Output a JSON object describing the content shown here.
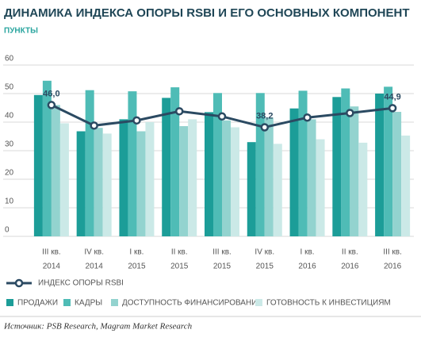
{
  "chart_data": {
    "type": "bar_line",
    "title": "ДИНАМИКА ИНДЕКСА ОПОРЫ RSBI И ЕГО ОСНОВНЫХ КОМПОНЕНТ",
    "subtitle": "ПУНКТЫ",
    "categories": [
      [
        "III кв.",
        "2014"
      ],
      [
        "IV кв.",
        "2014"
      ],
      [
        "I кв.",
        "2015"
      ],
      [
        "II кв.",
        "2015"
      ],
      [
        "III кв.",
        "2015"
      ],
      [
        "IV кв.",
        "2015"
      ],
      [
        "I кв.",
        "2016"
      ],
      [
        "II кв.",
        "2016"
      ],
      [
        "III кв.",
        "2016"
      ]
    ],
    "series": [
      {
        "name": "ПРОДАЖИ",
        "color": "#1c9d98",
        "values": [
          49.5,
          36.8,
          41,
          48.5,
          43.5,
          33,
          44.8,
          48.8,
          50
        ]
      },
      {
        "name": "КАДРЫ",
        "color": "#4fbcb6",
        "values": [
          54.5,
          51.2,
          50.8,
          52.2,
          50.2,
          50.2,
          51,
          51.8,
          52.4
        ]
      },
      {
        "name": "ДОСТУПНОСТЬ ФИНАНСИРОВАНИЯ",
        "color": "#93d3cf",
        "values": [
          46,
          38,
          36.8,
          38.6,
          40.6,
          41.6,
          41,
          45.5,
          43.6
        ]
      },
      {
        "name": "ГОТОВНОСТЬ К ИНВЕСТИЦИЯМ",
        "color": "#cbe9e7",
        "values": [
          39.6,
          36,
          40,
          41,
          38.2,
          32.4,
          34,
          32.8,
          35.3
        ]
      }
    ],
    "line": {
      "name": "ИНДЕКС ОПОРЫ RSBI",
      "color": "#2b4a62",
      "values": [
        46.0,
        38.8,
        40.6,
        43.8,
        42,
        38.2,
        41.6,
        43.2,
        44.9
      ],
      "value_labels": [
        "46,0",
        null,
        null,
        null,
        null,
        "38,2",
        null,
        null,
        "44,9"
      ]
    },
    "ylim": [
      0,
      60
    ],
    "yticks": [
      0,
      10,
      20,
      30,
      40,
      50,
      60
    ],
    "grid": true,
    "source": "Источник: PSB Research, Magram Market Research"
  }
}
